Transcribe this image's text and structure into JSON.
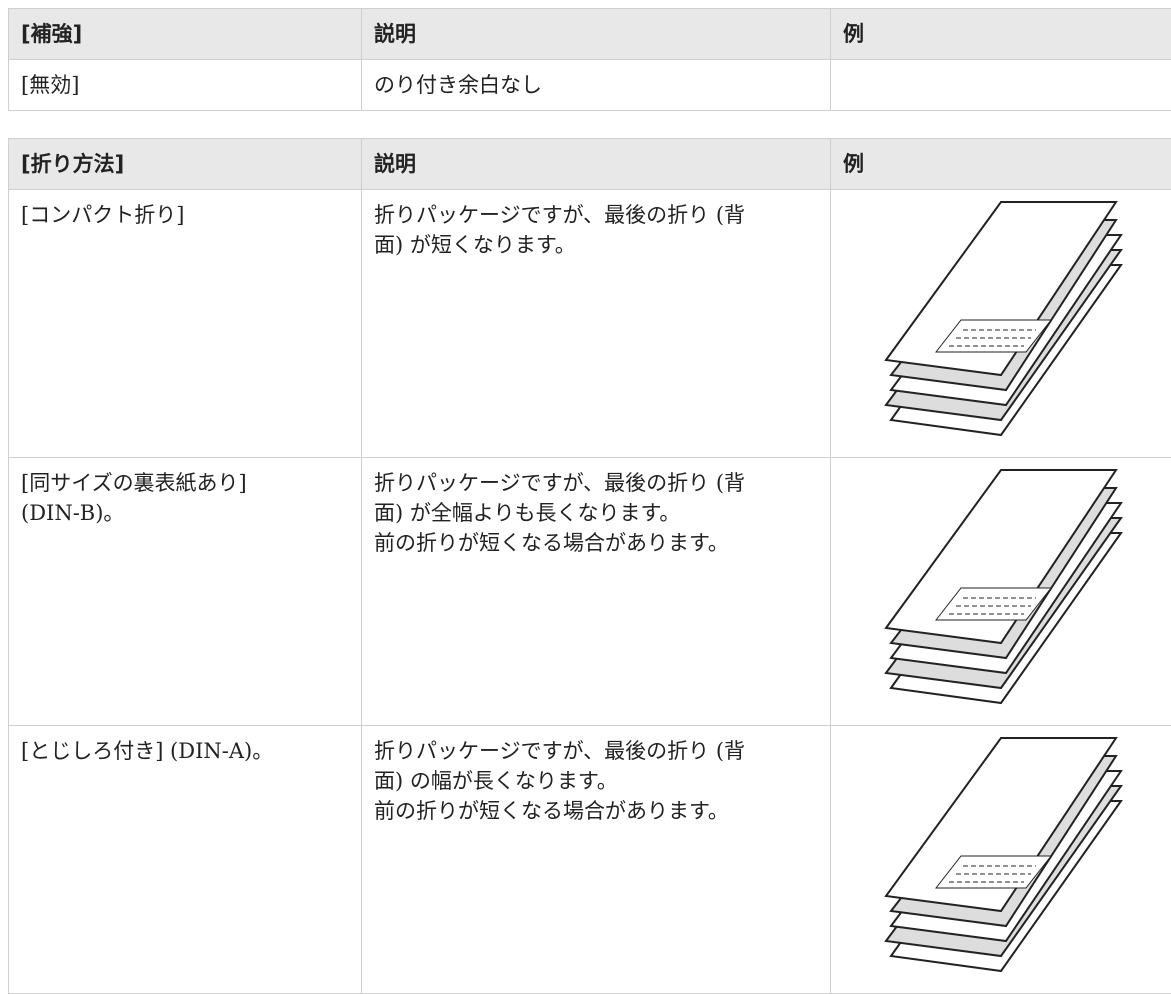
{
  "table1": {
    "headers": [
      "[補強]",
      "説明",
      "例"
    ],
    "rows": [
      [
        "[無効]",
        "のり付き余白なし"
      ]
    ]
  },
  "table2": {
    "headers": [
      "[折り方法]",
      "説明",
      "例"
    ],
    "rows": [
      [
        [
          "[コンパクト折り]"
        ],
        [
          "折りパッケージですが、最後の折り (背",
          "面) が短くなります。"
        ]
      ],
      [
        [
          "[同サイズの裏表紙あり]",
          "(DIN-B)。"
        ],
        [
          "折りパッケージですが、最後の折り (背",
          "面) が全幅よりも長くなります。",
          "前の折りが短くなる場合があります。"
        ]
      ],
      [
        [
          "[とじしろ付き] (DIN-A)。"
        ],
        [
          "折りパッケージですが、最後の折り (背",
          "面) の幅が長くなります。",
          "前の折りが短くなる場合があります。"
        ]
      ]
    ]
  }
}
